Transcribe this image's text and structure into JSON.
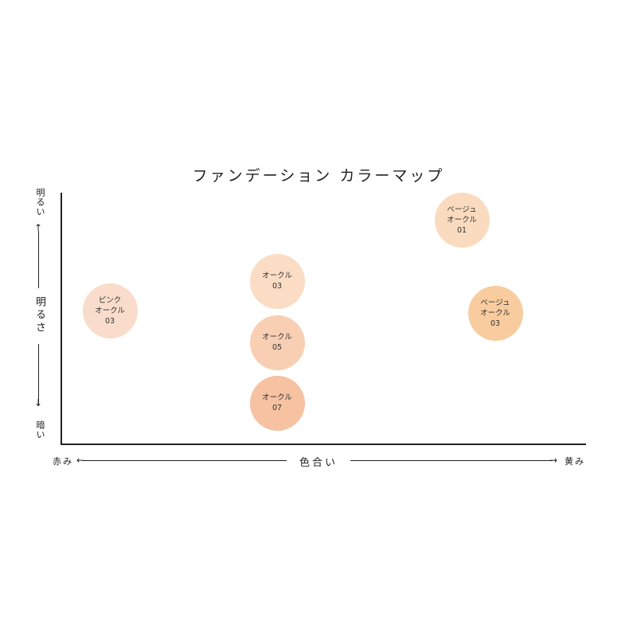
{
  "chart_data": {
    "type": "scatter",
    "title": "ファンデーション カラーマップ",
    "xaxis": {
      "label": "色合い",
      "left_label": "赤み",
      "right_label": "黄み"
    },
    "yaxis": {
      "label": "明るさ",
      "top_label": "明るい",
      "bottom_label": "暗い"
    },
    "grid": false,
    "points": [
      {
        "lines": [
          "ピンク",
          "オークル",
          "03"
        ],
        "color": "#f9dccb"
      },
      {
        "lines": [
          "オークル",
          "03"
        ],
        "color": "#fbdcc4"
      },
      {
        "lines": [
          "オークル",
          "05"
        ],
        "color": "#f9cfb3"
      },
      {
        "lines": [
          "オークル",
          "07"
        ],
        "color": "#f6c2a2"
      },
      {
        "lines": [
          "ベージュ",
          "オークル",
          "01"
        ],
        "color": "#fadbbf"
      },
      {
        "lines": [
          "ベージュ",
          "オークル",
          "03"
        ],
        "color": "#f8cc9f"
      }
    ]
  }
}
